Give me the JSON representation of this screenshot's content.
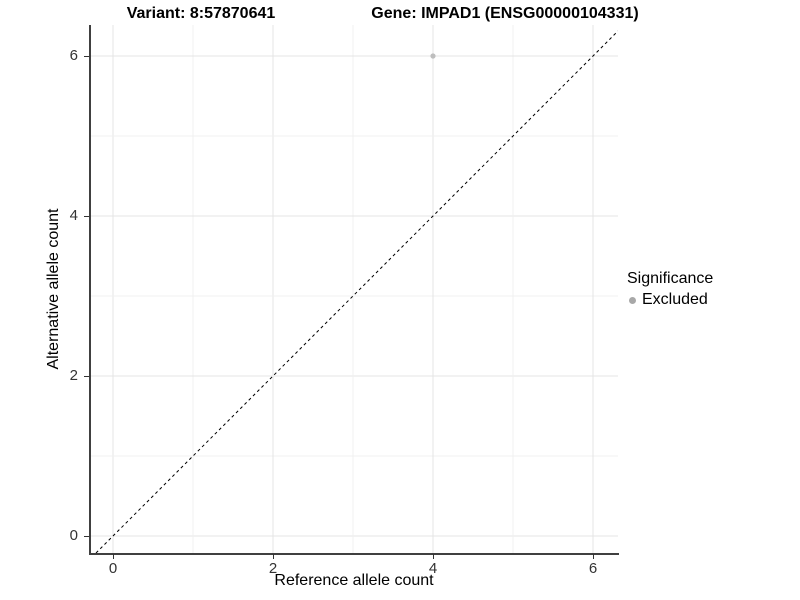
{
  "titles": {
    "variant_title": "Variant: 8:57870641",
    "gene_title": "Gene: IMPAD1 (ENSG00000104331)"
  },
  "x_axis": {
    "label": "Reference allele count",
    "tick_values": [
      0,
      2,
      4,
      6
    ],
    "tick_labels": [
      "0",
      "2",
      "4",
      "6"
    ]
  },
  "y_axis": {
    "label": "Alternative allele count",
    "tick_values": [
      0,
      2,
      4,
      6
    ],
    "tick_labels": [
      "0",
      "2",
      "4",
      "6"
    ]
  },
  "legend": {
    "title": "Significance",
    "items": [
      {
        "label": "Excluded",
        "color": "#a8a8a8"
      }
    ]
  },
  "colors": {
    "point": "#bebebe",
    "grid_major": "#e4e4e4",
    "grid_minor": "#f0f0f0",
    "axis_line": "#404040",
    "dashed_line": "#000000",
    "tick": "#333333"
  },
  "chart_data": {
    "type": "scatter",
    "title": "Variant: 8:57870641 | Gene: IMPAD1 (ENSG00000104331)",
    "xlabel": "Reference allele count",
    "ylabel": "Alternative allele count",
    "xlim": [
      -0.29,
      6.31
    ],
    "ylim": [
      -0.21,
      6.39
    ],
    "x_ticks": [
      0,
      2,
      4,
      6
    ],
    "y_ticks": [
      0,
      2,
      4,
      6
    ],
    "grid": "on",
    "gridline_interval": 1,
    "legend_position": "right",
    "legend_title": "Significance",
    "series": [
      {
        "name": "Excluded",
        "type": "scatter",
        "color": "#bebebe",
        "points": [
          {
            "x": 4,
            "y": 6
          }
        ]
      }
    ],
    "reference_line": {
      "equation": "y = x",
      "style": "dashed",
      "color": "#000000",
      "from": [
        0,
        0
      ],
      "to": [
        6,
        6
      ]
    }
  }
}
